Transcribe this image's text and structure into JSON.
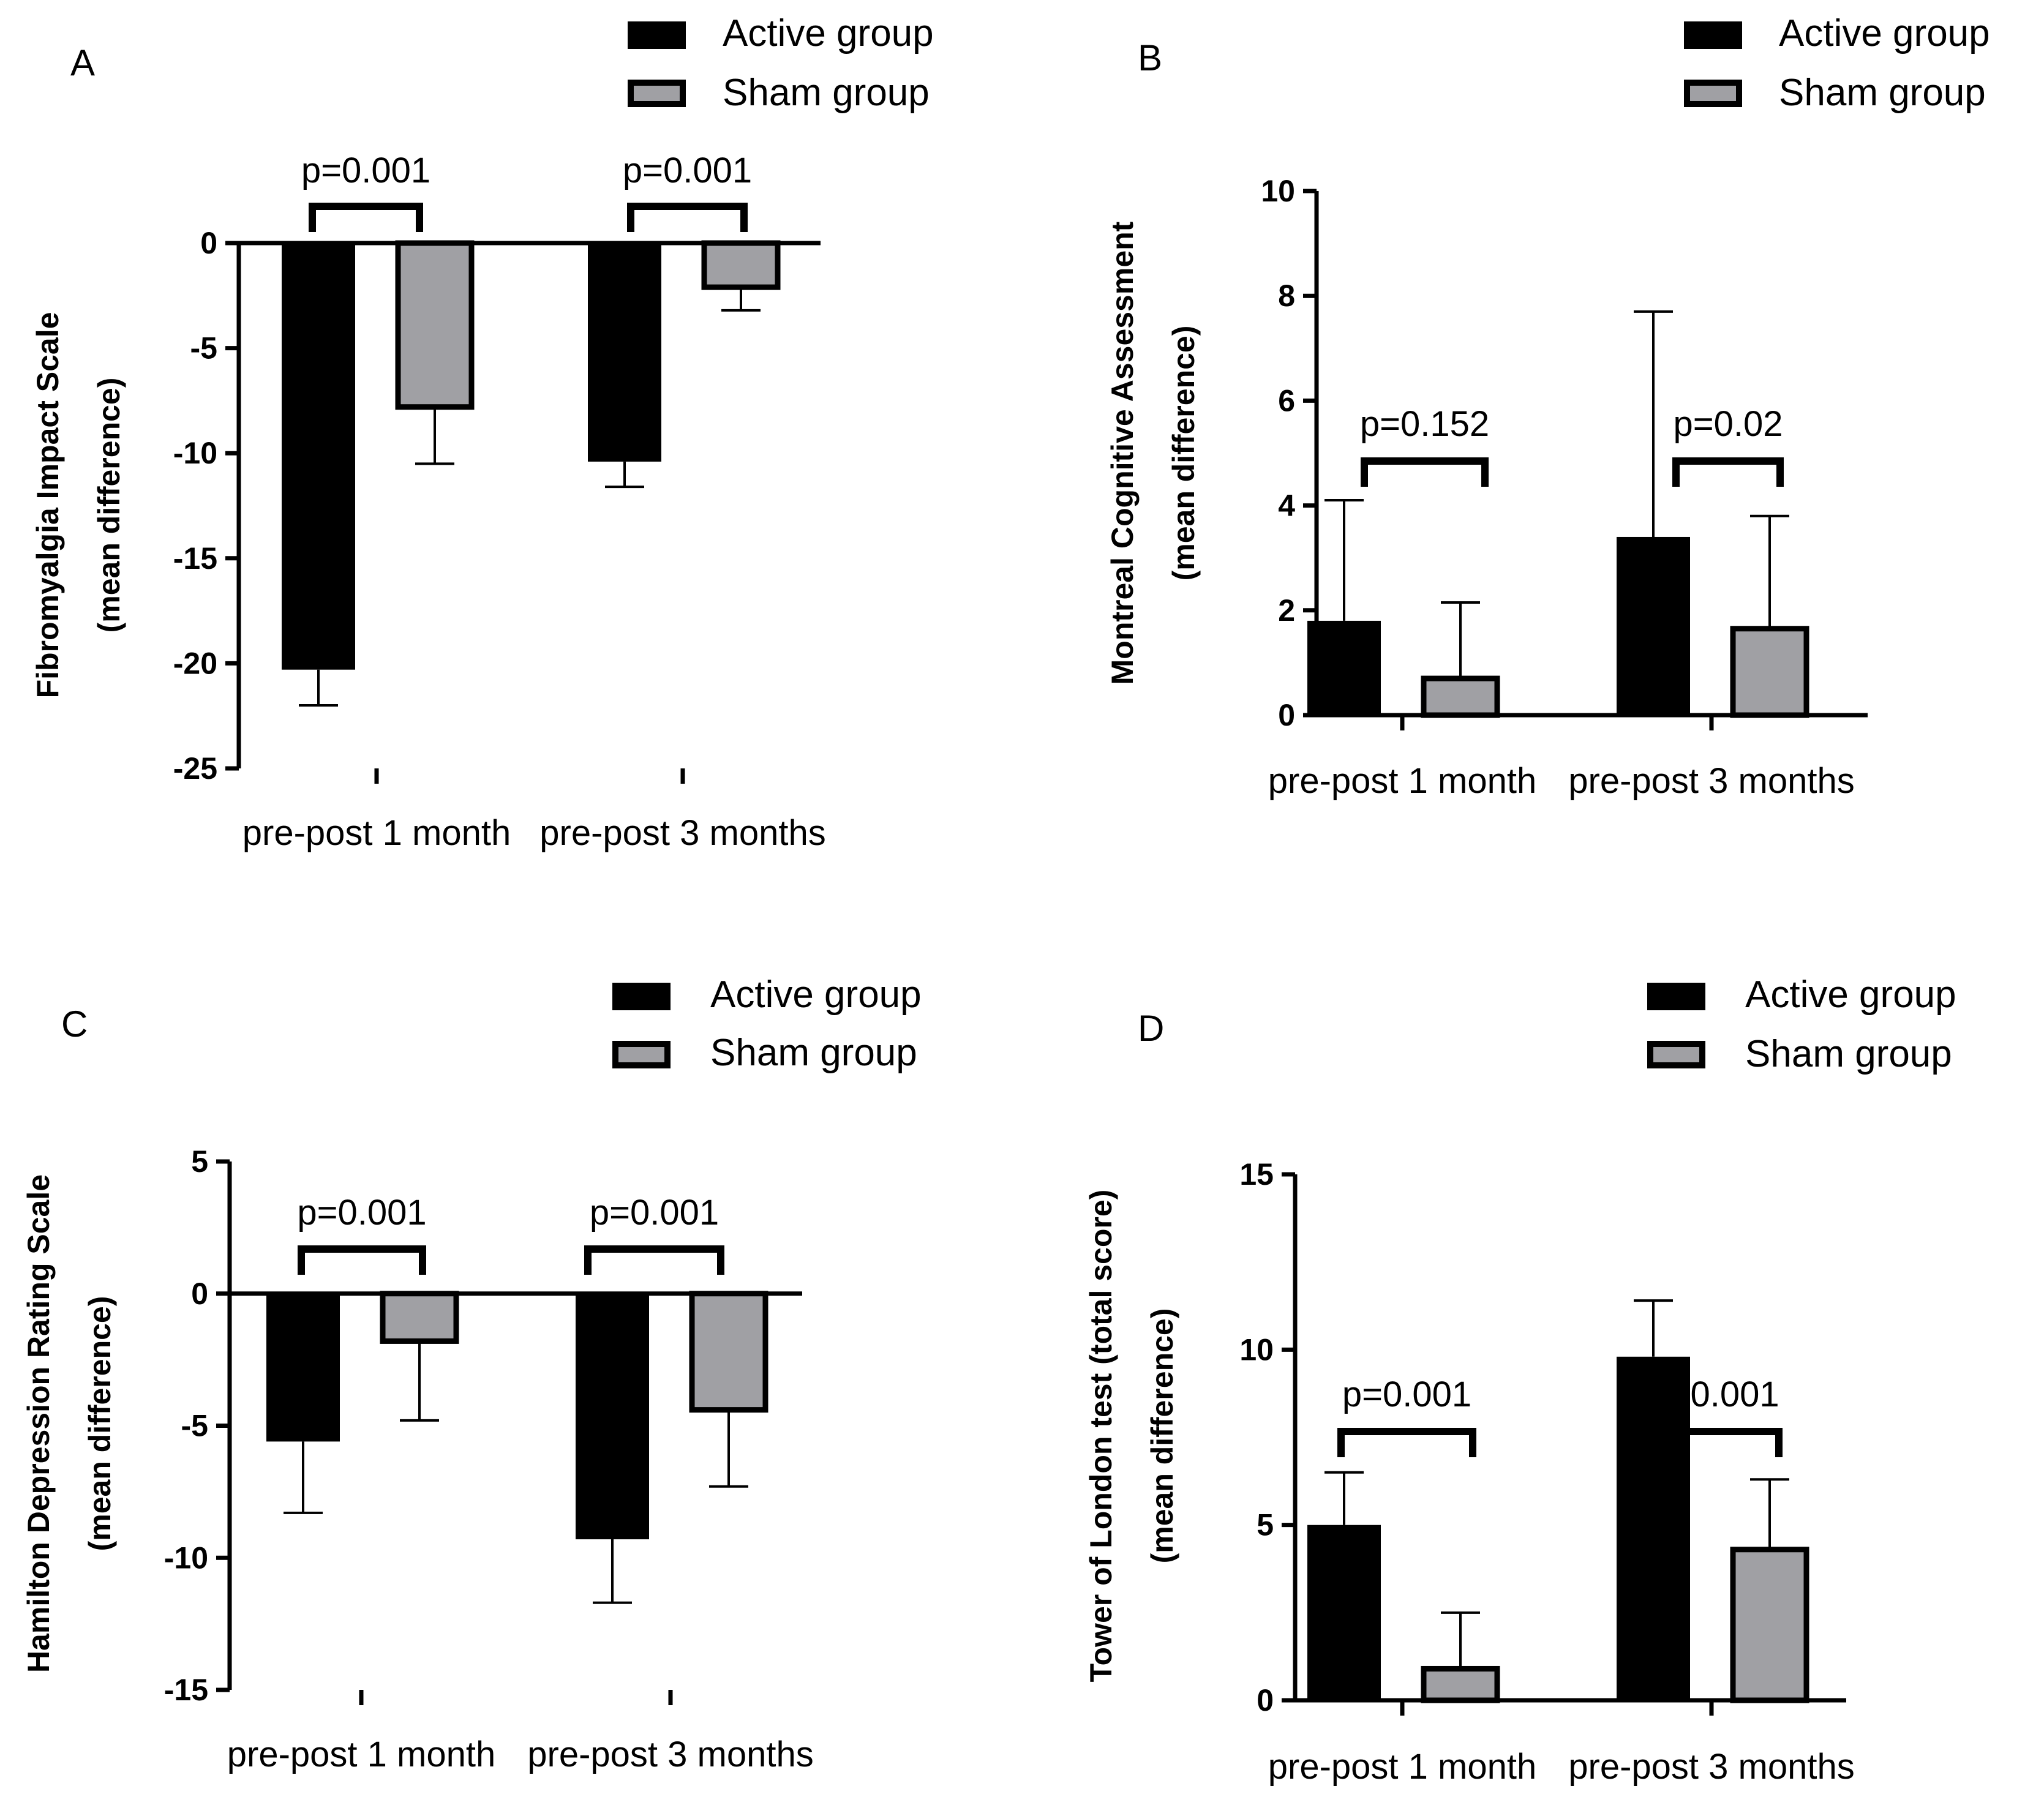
{
  "colors": {
    "active": "#000000",
    "sham": "#a0a0a4",
    "axis": "#000000"
  },
  "chart_data": [
    {
      "panel": "A",
      "type": "bar",
      "categories": [
        "pre-post 1 month",
        "pre-post 3 months"
      ],
      "series": [
        {
          "name": "Active group",
          "values": [
            -20.3,
            -10.4
          ],
          "error": [
            1.7,
            1.2
          ]
        },
        {
          "name": "Sham group",
          "values": [
            -7.8,
            -2.1
          ],
          "error": [
            2.7,
            1.1
          ]
        }
      ],
      "ylabel": [
        "Fibromyalgia Impact Scale",
        "(mean difference)"
      ],
      "ylim": [
        -25,
        0
      ],
      "yticks": [
        0,
        -5,
        -10,
        -15,
        -20,
        -25
      ],
      "yticklabels": [
        "0",
        "-5",
        "-10",
        "-15",
        "-20",
        "-25"
      ],
      "annotations": [
        "p=0.001",
        "p=0.001"
      ],
      "legend": "top-right",
      "grid": false
    },
    {
      "panel": "B",
      "type": "bar",
      "categories": [
        "pre-post 1 month",
        "pre-post 3 months"
      ],
      "series": [
        {
          "name": "Active group",
          "values": [
            1.8,
            3.4
          ],
          "error": [
            2.3,
            4.3
          ]
        },
        {
          "name": "Sham group",
          "values": [
            0.7,
            1.65
          ],
          "error": [
            1.45,
            2.15
          ]
        }
      ],
      "ylabel": [
        "Montreal Cognitive Assessment",
        "(mean difference)"
      ],
      "ylim": [
        0,
        10
      ],
      "yticks": [
        0,
        2,
        4,
        6,
        8,
        10
      ],
      "yticklabels": [
        "0",
        "2",
        "4",
        "6",
        "8",
        "10"
      ],
      "annotations": [
        "p=0.152",
        "p=0.02"
      ],
      "legend": "top-right",
      "grid": false
    },
    {
      "panel": "C",
      "type": "bar",
      "categories": [
        "pre-post 1 month",
        "pre-post 3 months"
      ],
      "series": [
        {
          "name": "Active group",
          "values": [
            -5.6,
            -9.3
          ],
          "error": [
            2.7,
            2.4
          ]
        },
        {
          "name": "Sham group",
          "values": [
            -1.8,
            -4.4
          ],
          "error": [
            3.0,
            2.9
          ]
        }
      ],
      "ylabel": [
        "Hamilton Depression Rating Scale",
        "(mean difference)"
      ],
      "ylim": [
        -15,
        5
      ],
      "yticks": [
        5,
        0,
        -5,
        -10,
        -15
      ],
      "yticklabels": [
        "5",
        "0",
        "-5",
        "-10",
        "-15"
      ],
      "annotations": [
        "p=0.001",
        "p=0.001"
      ],
      "legend": "top-right",
      "grid": false
    },
    {
      "panel": "D",
      "type": "bar",
      "categories": [
        "pre-post 1 month",
        "pre-post 3 months"
      ],
      "series": [
        {
          "name": "Active group",
          "values": [
            5.0,
            9.8
          ],
          "error": [
            1.5,
            1.6
          ]
        },
        {
          "name": "Sham group",
          "values": [
            0.9,
            4.3
          ],
          "error": [
            1.6,
            2.0
          ]
        }
      ],
      "ylabel": [
        "Tower of London test (total score)",
        "(mean difference)"
      ],
      "ylim": [
        0,
        15
      ],
      "yticks": [
        0,
        5,
        10,
        15
      ],
      "yticklabels": [
        "0",
        "5",
        "10",
        "15"
      ],
      "annotations": [
        "p=0.001",
        "p=0.001"
      ],
      "legend": "top-right",
      "grid": false
    }
  ]
}
